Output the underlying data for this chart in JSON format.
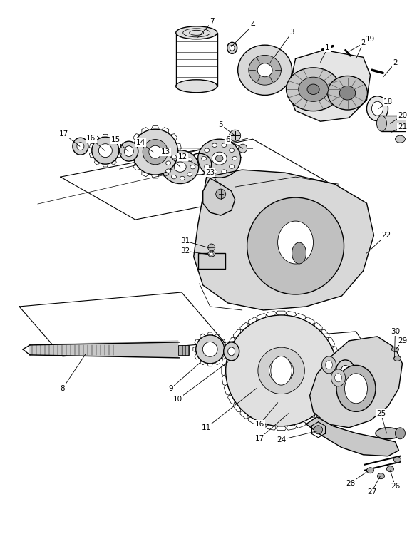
{
  "bg_color": "#ffffff",
  "line_color": "#000000",
  "figsize": [
    5.71,
    7.63
  ],
  "dpi": 100,
  "lw_main": 1.0,
  "lw_thin": 0.6,
  "lw_thick": 1.5
}
